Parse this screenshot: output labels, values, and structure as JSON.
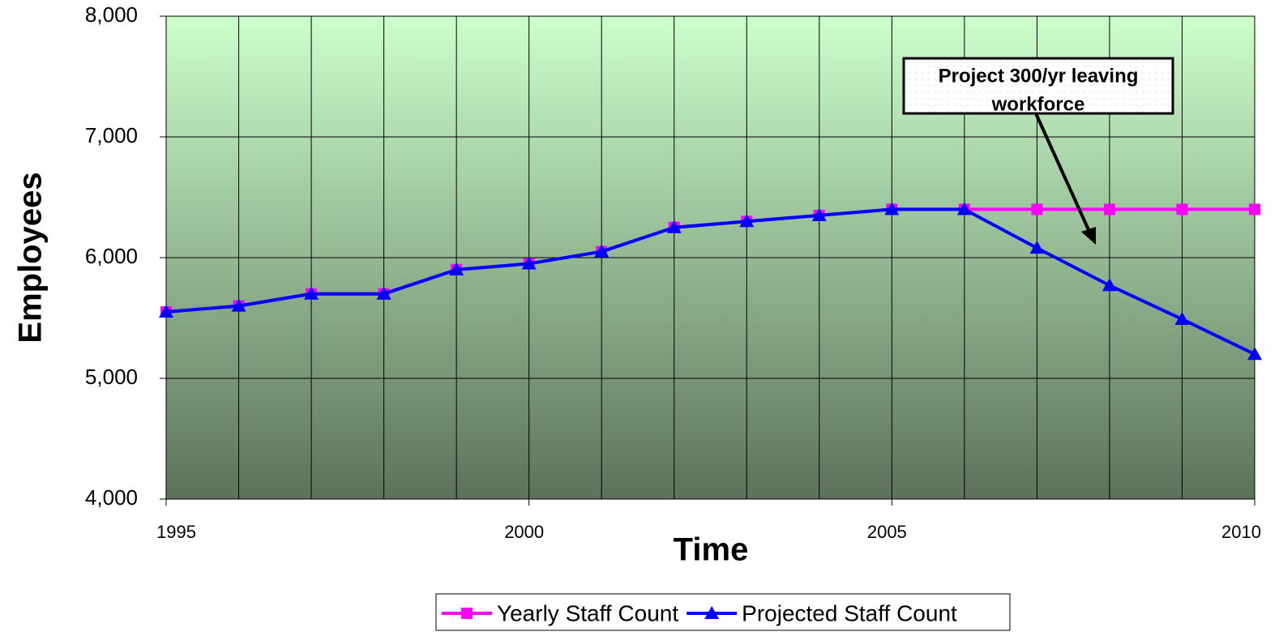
{
  "chart_data": {
    "type": "line",
    "x_label": "Time",
    "y_label": "Employees",
    "x": [
      1995,
      1996,
      1997,
      1998,
      1999,
      2000,
      2001,
      2002,
      2003,
      2004,
      2005,
      2006,
      2007,
      2008,
      2009,
      2010
    ],
    "series": [
      {
        "name": "Yearly Staff Count",
        "color": "#ff00ff",
        "marker": "square",
        "values": [
          5550,
          5600,
          5700,
          5700,
          5900,
          5950,
          6050,
          6250,
          6300,
          6350,
          6400,
          6400,
          6400,
          6400,
          6400,
          6400
        ]
      },
      {
        "name": "Projected Staff Count",
        "color": "#0000ff",
        "marker": "triangle",
        "values": [
          5550,
          5600,
          5700,
          5700,
          5900,
          5950,
          6050,
          6250,
          6300,
          6350,
          6400,
          6400,
          6080,
          5770,
          5490,
          5200
        ]
      }
    ],
    "xlim": [
      1995,
      2010
    ],
    "xticks": [
      1995,
      2000,
      2005,
      2010
    ],
    "ylim": [
      4000,
      8000
    ],
    "yticks": [
      {
        "value": 4000,
        "label": "4,000"
      },
      {
        "value": 5000,
        "label": "5,000"
      },
      {
        "value": 6000,
        "label": "6,000"
      },
      {
        "value": 7000,
        "label": "7,000"
      },
      {
        "value": 8000,
        "label": "8,000"
      }
    ],
    "grid": true,
    "legend": "bottom",
    "annotation": [
      "Project 300/yr leaving",
      "workforce"
    ]
  }
}
